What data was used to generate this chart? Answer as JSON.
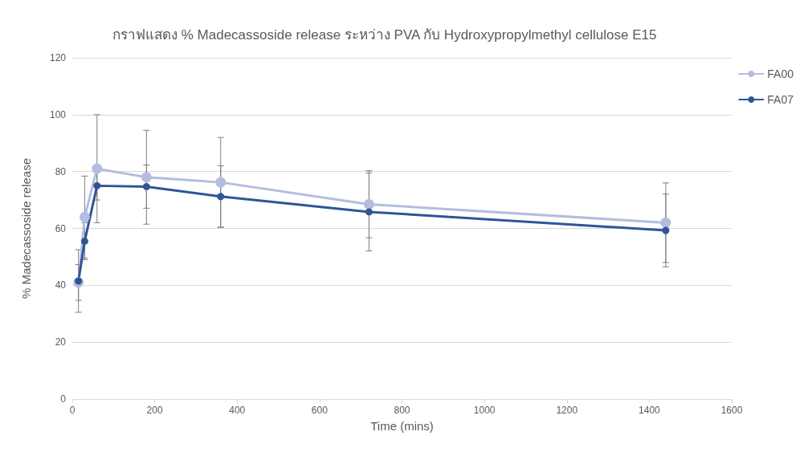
{
  "chart_data": {
    "type": "line",
    "title": "กราฟแสดง % Madecassoside release ระหว่าง PVA กับ Hydroxypropylmethyl cellulose E15",
    "xlabel": "Time (mins)",
    "ylabel": "% Madecassoside release",
    "x": [
      15,
      30,
      60,
      180,
      360,
      720,
      1440
    ],
    "series": [
      {
        "name": "FA00",
        "color": "#b4bde0",
        "values": [
          41,
          64,
          81,
          78,
          76.2,
          68.5,
          62
        ],
        "errors": [
          6.3,
          14.4,
          19,
          16.5,
          15.8,
          11.8,
          14
        ]
      },
      {
        "name": "FA07",
        "color": "#2f5597",
        "values": [
          41.5,
          55.5,
          75,
          74.7,
          71.2,
          65.8,
          59.3
        ],
        "errors": [
          11,
          6.5,
          5,
          7.6,
          10.8,
          13.7,
          12.8
        ]
      }
    ],
    "xlim": [
      0,
      1600
    ],
    "xticks": [
      0,
      200,
      400,
      600,
      800,
      1000,
      1200,
      1400,
      1600
    ],
    "ylim": [
      0,
      120
    ],
    "yticks": [
      0,
      20,
      40,
      60,
      80,
      100,
      120
    ],
    "grid": "y",
    "legend": "top right",
    "marker": "circle",
    "line_style": "solid"
  }
}
